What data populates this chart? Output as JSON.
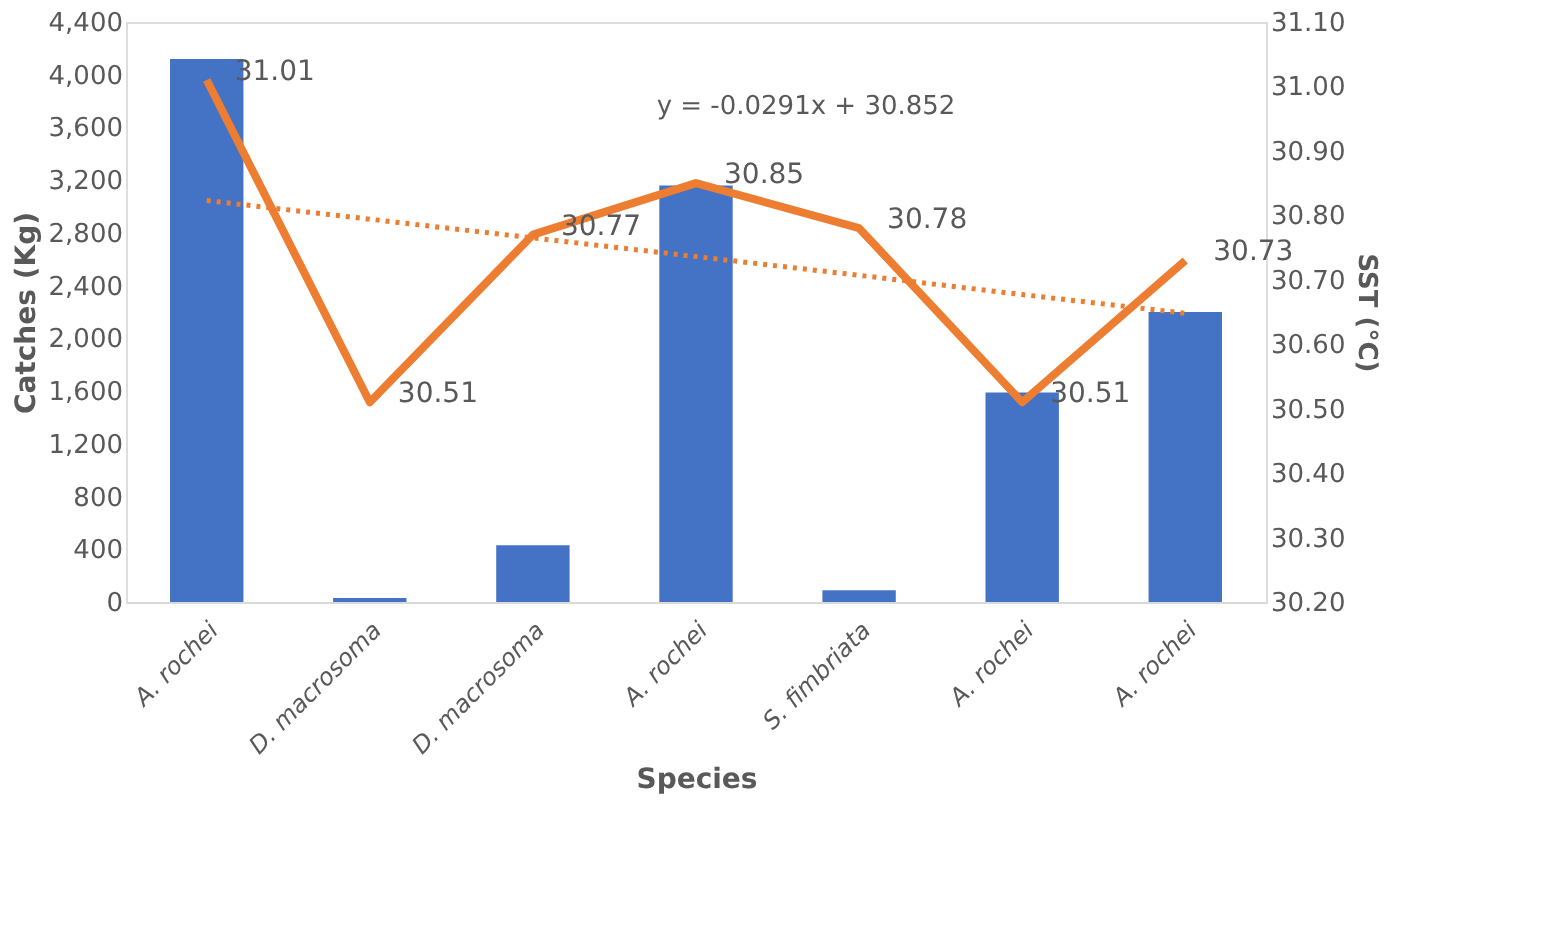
{
  "chart_data": {
    "type": "bar",
    "xlabel": "Species",
    "ylabel": "Catches (Kg)",
    "y2label": "SST (°C)",
    "categories": [
      "A. rochei",
      "D. macrosoma",
      "D. macrosoma",
      "A. rochei",
      "S. fimbriata",
      "A. rochei",
      "A. rochei"
    ],
    "series": [
      {
        "color": "#4472c4",
        "values": [
          4120,
          30,
          430,
          3160,
          90,
          1590,
          2200
        ]
      },
      {
        "type": "line",
        "axis": "y2",
        "color": "#ed7d31",
        "line_style": "solid",
        "values": [
          31.01,
          30.51,
          30.77,
          30.85,
          30.78,
          30.51,
          30.73
        ],
        "value_labels": [
          "31.01",
          "30.51",
          "30.77",
          "30.85",
          "30.78",
          "30.51",
          "30.73"
        ]
      },
      {
        "type": "line",
        "axis": "y2",
        "color": "#ed7d31",
        "line_style": "dotted",
        "values": [
          30.823,
          30.794,
          30.765,
          30.736,
          30.707,
          30.677,
          30.648
        ]
      }
    ],
    "ylim": [
      0,
      4400
    ],
    "yticks": [
      0,
      {
        "value": 400,
        "label": "400"
      },
      {
        "value": 800,
        "label": "800"
      },
      {
        "value": 1200,
        "label": "1,200"
      },
      {
        "value": 1600,
        "label": "1,600"
      },
      {
        "value": 2000,
        "label": "2,000"
      },
      {
        "value": 2400,
        "label": "2,400"
      },
      {
        "value": 2800,
        "label": "2,800"
      },
      {
        "value": 3200,
        "label": "3,200"
      },
      {
        "value": 3600,
        "label": "3,600"
      },
      {
        "value": 4000,
        "label": "4,000"
      },
      {
        "value": 4400,
        "label": "4,400"
      }
    ],
    "y2lim": [
      30.2,
      31.1
    ],
    "y2ticks": [
      {
        "value": 30.2,
        "label": "30.20"
      },
      {
        "value": 30.3,
        "label": "30.30"
      },
      {
        "value": 30.4,
        "label": "30.40"
      },
      {
        "value": 30.5,
        "label": "30.50"
      },
      {
        "value": 30.6,
        "label": "30.60"
      },
      {
        "value": 30.7,
        "label": "30.70"
      },
      {
        "value": 30.8,
        "label": "30.80"
      },
      {
        "value": 30.9,
        "label": "30.90"
      },
      {
        "value": 31.0,
        "label": "31.00"
      },
      {
        "value": 31.1,
        "label": "31.10"
      }
    ],
    "annotations": [
      "y = -0.0291x + 30.852"
    ],
    "grid": false
  }
}
